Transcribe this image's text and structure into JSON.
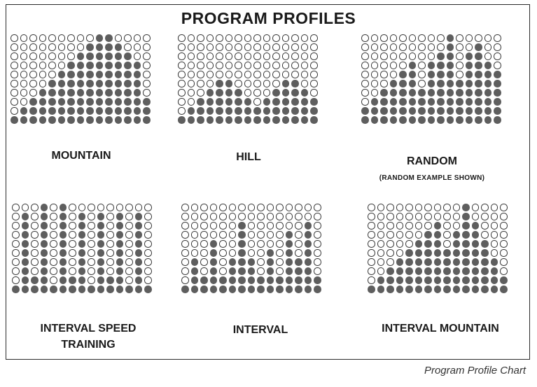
{
  "title": "PROGRAM PROFILES",
  "caption": "Program Profile Chart",
  "colors": {
    "filled_dot": "#5e5e5e",
    "empty_dot_outline": "#333333",
    "frame": "#2a2a2a"
  },
  "profiles": [
    {
      "label": "MOUNTAIN",
      "columns": [
        1,
        2,
        3,
        4,
        5,
        6,
        7,
        8,
        9,
        10,
        10,
        9,
        8,
        7,
        3
      ]
    },
    {
      "label": "HILL",
      "columns": [
        1,
        2,
        3,
        4,
        5,
        5,
        4,
        3,
        2,
        3,
        4,
        5,
        5,
        4,
        3
      ]
    },
    {
      "label": "RANDOM",
      "sublabel": "(RANDOM EXAMPLE SHOWN)",
      "columns": [
        2,
        3,
        4,
        5,
        6,
        7,
        4,
        7,
        8,
        10,
        5,
        8,
        9,
        7,
        6
      ]
    },
    {
      "label": "INTERVAL SPEED\nTRAINING",
      "columns": [
        1,
        9,
        2,
        10,
        1,
        10,
        2,
        9,
        1,
        9,
        2,
        9,
        1,
        9,
        1
      ]
    },
    {
      "label": "INTERVAL",
      "columns": [
        1,
        4,
        2,
        6,
        2,
        4,
        8,
        4,
        2,
        5,
        2,
        7,
        4,
        8,
        2
      ]
    },
    {
      "label": "INTERVAL MOUNTAIN",
      "columns": [
        1,
        2,
        3,
        4,
        5,
        6,
        7,
        8,
        5,
        7,
        10,
        8,
        6,
        4,
        2
      ]
    }
  ]
}
